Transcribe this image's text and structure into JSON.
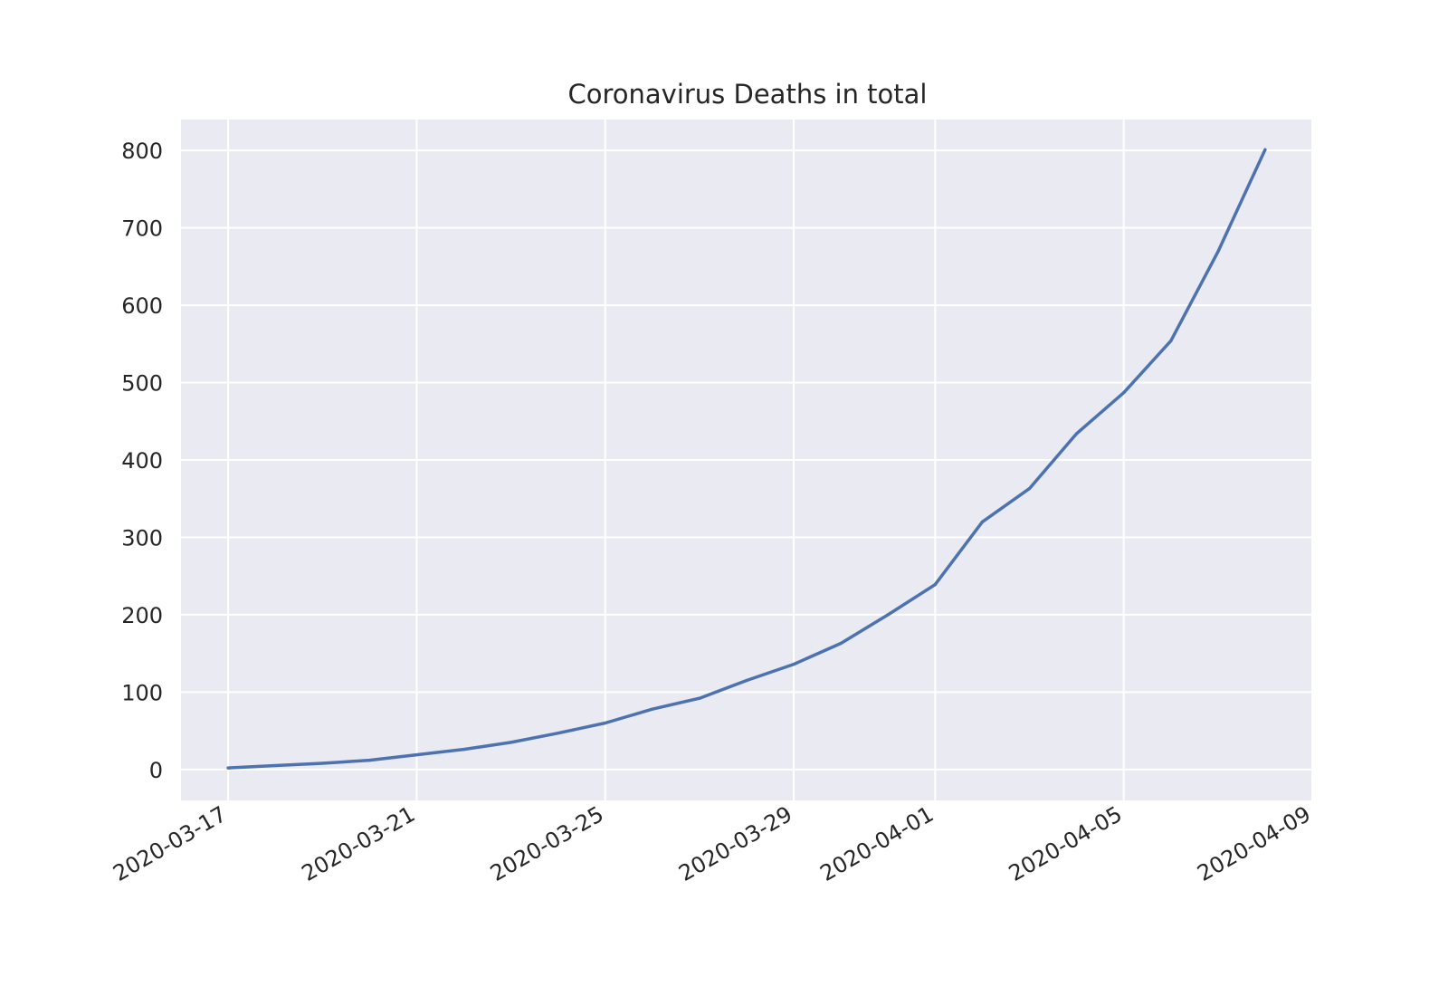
{
  "chart_data": {
    "type": "line",
    "title": "Coronavirus Deaths in total",
    "xlabel": "",
    "ylabel": "",
    "x_is_date": true,
    "xlim": [
      "2020-03-16",
      "2020-04-09"
    ],
    "ylim": [
      -40,
      840
    ],
    "xticks": [
      "2020-03-17",
      "2020-03-21",
      "2020-03-25",
      "2020-03-29",
      "2020-04-01",
      "2020-04-05",
      "2020-04-09"
    ],
    "yticks": [
      0,
      100,
      200,
      300,
      400,
      500,
      600,
      700,
      800
    ],
    "grid": true,
    "legend": "none",
    "colors": {
      "line": "#4c72b0",
      "background": "#eaeaf2",
      "grid": "#ffffff",
      "text": "#262626"
    },
    "series": [
      {
        "x": [
          "2020-03-17",
          "2020-03-18",
          "2020-03-19",
          "2020-03-20",
          "2020-03-21",
          "2020-03-22",
          "2020-03-23",
          "2020-03-24",
          "2020-03-25",
          "2020-03-26",
          "2020-03-27",
          "2020-03-28",
          "2020-03-29",
          "2020-03-30",
          "2020-03-31",
          "2020-04-01",
          "2020-04-02",
          "2020-04-03",
          "2020-04-04",
          "2020-04-05",
          "2020-04-06",
          "2020-04-07",
          "2020-04-08"
        ],
        "values": [
          2,
          5,
          8,
          12,
          19,
          26,
          35,
          47,
          60,
          78,
          92,
          115,
          136,
          163,
          200,
          239,
          320,
          363,
          434,
          487,
          554,
          669,
          801
        ]
      }
    ]
  }
}
